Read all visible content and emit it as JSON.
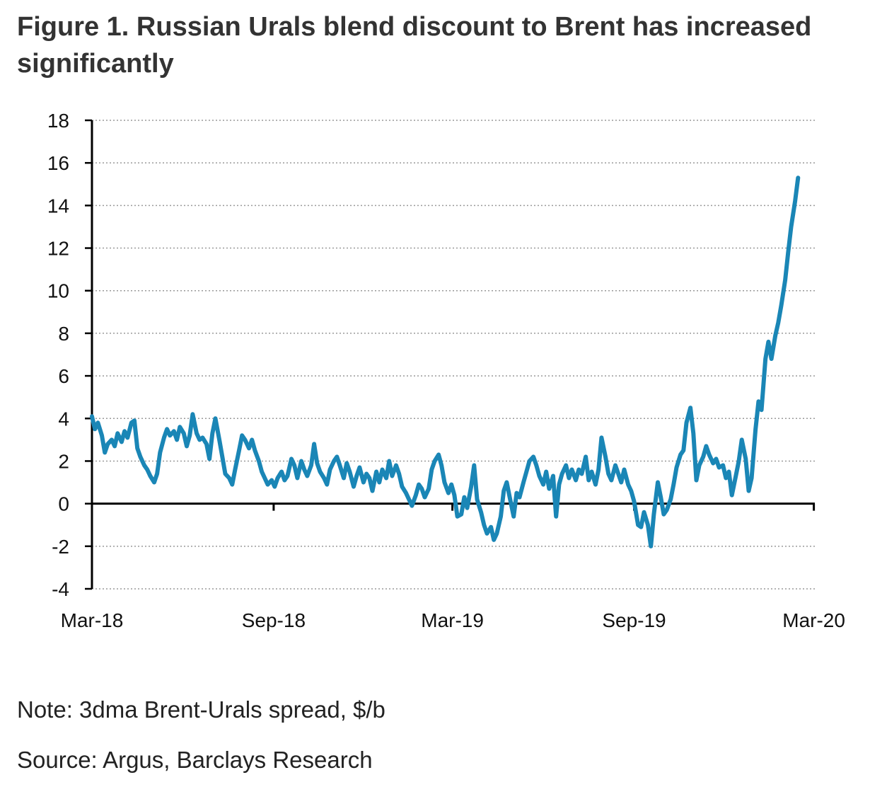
{
  "title": "Figure 1. Russian Urals blend discount to Brent has increased significantly",
  "note": "Note: 3dma Brent-Urals spread, $/b",
  "source": "Source: Argus, Barclays Research",
  "colors": {
    "series": "#1a86b6",
    "axis": "#000000",
    "grid": "#9a9a9a"
  },
  "chart_data": {
    "type": "line",
    "title": "Figure 1. Russian Urals blend discount to Brent has increased significantly",
    "xlabel": "",
    "ylabel": "",
    "x_range": [
      "2018-03-01",
      "2020-03-02"
    ],
    "ylim": [
      -4,
      18
    ],
    "yticks": [
      -4,
      -2,
      0,
      2,
      4,
      6,
      8,
      10,
      12,
      14,
      16,
      18
    ],
    "yticklabels": [
      "-4",
      "-2",
      "0",
      "2",
      "4",
      "6",
      "8",
      "10",
      "12",
      "14",
      "16",
      "18"
    ],
    "xticks": [
      "2018-03-01",
      "2018-09-01",
      "2019-03-01",
      "2019-09-01",
      "2020-03-01"
    ],
    "xticklabels": [
      "Mar-18",
      "Sep-18",
      "Mar-19",
      "Sep-19",
      "Mar-20"
    ],
    "grid": "horizontal dotted",
    "legend": "none",
    "series": [
      {
        "color": "#1a86b6",
        "points": [
          [
            "2018-03-01",
            4.1
          ],
          [
            "2018-03-04",
            3.5
          ],
          [
            "2018-03-07",
            3.8
          ],
          [
            "2018-03-11",
            3.2
          ],
          [
            "2018-03-14",
            2.4
          ],
          [
            "2018-03-17",
            2.8
          ],
          [
            "2018-03-21",
            3.0
          ],
          [
            "2018-03-24",
            2.7
          ],
          [
            "2018-03-27",
            3.3
          ],
          [
            "2018-03-31",
            2.9
          ],
          [
            "2018-04-03",
            3.4
          ],
          [
            "2018-04-06",
            3.1
          ],
          [
            "2018-04-10",
            3.8
          ],
          [
            "2018-04-13",
            3.9
          ],
          [
            "2018-04-16",
            2.6
          ],
          [
            "2018-04-19",
            2.2
          ],
          [
            "2018-04-23",
            1.8
          ],
          [
            "2018-04-26",
            1.6
          ],
          [
            "2018-04-29",
            1.3
          ],
          [
            "2018-05-03",
            1.0
          ],
          [
            "2018-05-06",
            1.4
          ],
          [
            "2018-05-09",
            2.4
          ],
          [
            "2018-05-13",
            3.1
          ],
          [
            "2018-05-16",
            3.5
          ],
          [
            "2018-05-19",
            3.2
          ],
          [
            "2018-05-23",
            3.4
          ],
          [
            "2018-05-26",
            3.0
          ],
          [
            "2018-05-29",
            3.6
          ],
          [
            "2018-06-02",
            3.3
          ],
          [
            "2018-06-05",
            2.7
          ],
          [
            "2018-06-08",
            3.2
          ],
          [
            "2018-06-11",
            4.2
          ],
          [
            "2018-06-15",
            3.3
          ],
          [
            "2018-06-18",
            3.0
          ],
          [
            "2018-06-21",
            3.1
          ],
          [
            "2018-06-25",
            2.8
          ],
          [
            "2018-06-28",
            2.1
          ],
          [
            "2018-07-01",
            3.3
          ],
          [
            "2018-07-04",
            4.0
          ],
          [
            "2018-07-08",
            3.0
          ],
          [
            "2018-07-11",
            2.2
          ],
          [
            "2018-07-14",
            1.4
          ],
          [
            "2018-07-18",
            1.2
          ],
          [
            "2018-07-21",
            0.9
          ],
          [
            "2018-07-24",
            1.6
          ],
          [
            "2018-07-28",
            2.5
          ],
          [
            "2018-07-31",
            3.2
          ],
          [
            "2018-08-03",
            3.0
          ],
          [
            "2018-08-07",
            2.6
          ],
          [
            "2018-08-10",
            3.0
          ],
          [
            "2018-08-13",
            2.5
          ],
          [
            "2018-08-17",
            2.0
          ],
          [
            "2018-08-20",
            1.5
          ],
          [
            "2018-08-23",
            1.2
          ],
          [
            "2018-08-26",
            0.9
          ],
          [
            "2018-08-30",
            1.1
          ],
          [
            "2018-09-02",
            0.8
          ],
          [
            "2018-09-05",
            1.2
          ],
          [
            "2018-09-09",
            1.5
          ],
          [
            "2018-09-12",
            1.1
          ],
          [
            "2018-09-15",
            1.3
          ],
          [
            "2018-09-19",
            2.1
          ],
          [
            "2018-09-22",
            1.8
          ],
          [
            "2018-09-25",
            1.2
          ],
          [
            "2018-09-29",
            2.0
          ],
          [
            "2018-10-02",
            1.6
          ],
          [
            "2018-10-05",
            1.3
          ],
          [
            "2018-10-09",
            1.8
          ],
          [
            "2018-10-12",
            2.8
          ],
          [
            "2018-10-15",
            1.9
          ],
          [
            "2018-10-18",
            1.5
          ],
          [
            "2018-10-22",
            1.2
          ],
          [
            "2018-10-25",
            0.9
          ],
          [
            "2018-10-28",
            1.6
          ],
          [
            "2018-11-01",
            2.0
          ],
          [
            "2018-11-04",
            2.2
          ],
          [
            "2018-11-07",
            1.8
          ],
          [
            "2018-11-11",
            1.2
          ],
          [
            "2018-11-14",
            1.9
          ],
          [
            "2018-11-17",
            1.5
          ],
          [
            "2018-11-21",
            0.8
          ],
          [
            "2018-11-24",
            1.3
          ],
          [
            "2018-11-27",
            1.7
          ],
          [
            "2018-12-01",
            1.0
          ],
          [
            "2018-12-04",
            1.4
          ],
          [
            "2018-12-07",
            1.2
          ],
          [
            "2018-12-10",
            0.6
          ],
          [
            "2018-12-14",
            1.5
          ],
          [
            "2018-12-17",
            1.0
          ],
          [
            "2018-12-20",
            1.6
          ],
          [
            "2018-12-24",
            1.2
          ],
          [
            "2018-12-27",
            2.0
          ],
          [
            "2018-12-30",
            1.3
          ],
          [
            "2019-01-03",
            1.8
          ],
          [
            "2019-01-06",
            1.4
          ],
          [
            "2019-01-09",
            0.8
          ],
          [
            "2019-01-13",
            0.5
          ],
          [
            "2019-01-16",
            0.2
          ],
          [
            "2019-01-19",
            -0.1
          ],
          [
            "2019-01-23",
            0.4
          ],
          [
            "2019-01-26",
            0.9
          ],
          [
            "2019-01-29",
            0.7
          ],
          [
            "2019-02-01",
            0.3
          ],
          [
            "2019-02-05",
            0.7
          ],
          [
            "2019-02-08",
            1.6
          ],
          [
            "2019-02-11",
            2.0
          ],
          [
            "2019-02-15",
            2.3
          ],
          [
            "2019-02-18",
            1.8
          ],
          [
            "2019-02-21",
            1.0
          ],
          [
            "2019-02-25",
            0.5
          ],
          [
            "2019-02-28",
            0.9
          ],
          [
            "2019-03-03",
            0.4
          ],
          [
            "2019-03-06",
            -0.6
          ],
          [
            "2019-03-10",
            -0.5
          ],
          [
            "2019-03-13",
            0.3
          ],
          [
            "2019-03-16",
            -0.2
          ],
          [
            "2019-03-20",
            0.8
          ],
          [
            "2019-03-23",
            1.8
          ],
          [
            "2019-03-26",
            0.2
          ],
          [
            "2019-03-30",
            -0.4
          ],
          [
            "2019-04-02",
            -1.0
          ],
          [
            "2019-04-05",
            -1.4
          ],
          [
            "2019-04-09",
            -1.1
          ],
          [
            "2019-04-12",
            -1.7
          ],
          [
            "2019-04-15",
            -1.4
          ],
          [
            "2019-04-19",
            -0.6
          ],
          [
            "2019-04-22",
            0.6
          ],
          [
            "2019-04-25",
            1.0
          ],
          [
            "2019-04-28",
            0.3
          ],
          [
            "2019-05-02",
            -0.6
          ],
          [
            "2019-05-05",
            0.5
          ],
          [
            "2019-05-08",
            0.3
          ],
          [
            "2019-05-12",
            1.0
          ],
          [
            "2019-05-15",
            1.5
          ],
          [
            "2019-05-18",
            2.0
          ],
          [
            "2019-05-22",
            2.2
          ],
          [
            "2019-05-25",
            1.8
          ],
          [
            "2019-05-28",
            1.3
          ],
          [
            "2019-06-01",
            0.9
          ],
          [
            "2019-06-04",
            1.5
          ],
          [
            "2019-06-07",
            0.7
          ],
          [
            "2019-06-11",
            1.3
          ],
          [
            "2019-06-14",
            -0.6
          ],
          [
            "2019-06-17",
            0.9
          ],
          [
            "2019-06-20",
            1.4
          ],
          [
            "2019-06-24",
            1.8
          ],
          [
            "2019-06-27",
            1.2
          ],
          [
            "2019-06-30",
            1.6
          ],
          [
            "2019-07-04",
            1.1
          ],
          [
            "2019-07-07",
            1.6
          ],
          [
            "2019-07-10",
            1.4
          ],
          [
            "2019-07-14",
            2.2
          ],
          [
            "2019-07-17",
            1.1
          ],
          [
            "2019-07-20",
            1.5
          ],
          [
            "2019-07-24",
            0.9
          ],
          [
            "2019-07-27",
            1.6
          ],
          [
            "2019-07-30",
            3.1
          ],
          [
            "2019-08-03",
            2.2
          ],
          [
            "2019-08-06",
            1.4
          ],
          [
            "2019-08-09",
            1.1
          ],
          [
            "2019-08-13",
            1.8
          ],
          [
            "2019-08-16",
            1.4
          ],
          [
            "2019-08-19",
            1.0
          ],
          [
            "2019-08-22",
            1.6
          ],
          [
            "2019-08-26",
            0.9
          ],
          [
            "2019-08-29",
            0.6
          ],
          [
            "2019-09-01",
            0.1
          ],
          [
            "2019-09-05",
            -1.0
          ],
          [
            "2019-09-08",
            -1.1
          ],
          [
            "2019-09-11",
            -0.4
          ],
          [
            "2019-09-15",
            -1.0
          ],
          [
            "2019-09-18",
            -2.0
          ],
          [
            "2019-09-21",
            -0.5
          ],
          [
            "2019-09-25",
            1.0
          ],
          [
            "2019-09-28",
            0.3
          ],
          [
            "2019-10-01",
            -0.5
          ],
          [
            "2019-10-04",
            -0.3
          ],
          [
            "2019-10-08",
            0.2
          ],
          [
            "2019-10-11",
            0.9
          ],
          [
            "2019-10-14",
            1.7
          ],
          [
            "2019-10-18",
            2.3
          ],
          [
            "2019-10-21",
            2.5
          ],
          [
            "2019-10-24",
            3.8
          ],
          [
            "2019-10-28",
            4.5
          ],
          [
            "2019-10-31",
            3.3
          ],
          [
            "2019-11-03",
            1.1
          ],
          [
            "2019-11-06",
            1.8
          ],
          [
            "2019-11-10",
            2.2
          ],
          [
            "2019-11-13",
            2.7
          ],
          [
            "2019-11-16",
            2.3
          ],
          [
            "2019-11-20",
            1.9
          ],
          [
            "2019-11-23",
            2.1
          ],
          [
            "2019-11-26",
            1.7
          ],
          [
            "2019-11-30",
            1.8
          ],
          [
            "2019-12-03",
            1.2
          ],
          [
            "2019-12-06",
            1.5
          ],
          [
            "2019-12-09",
            0.4
          ],
          [
            "2019-12-13",
            1.3
          ],
          [
            "2019-12-16",
            2.0
          ],
          [
            "2019-12-19",
            3.0
          ],
          [
            "2019-12-23",
            2.1
          ],
          [
            "2019-12-26",
            0.6
          ],
          [
            "2019-12-29",
            1.2
          ],
          [
            "2020-01-02",
            3.5
          ],
          [
            "2020-01-05",
            4.8
          ],
          [
            "2020-01-08",
            4.4
          ],
          [
            "2020-01-12",
            6.8
          ],
          [
            "2020-01-15",
            7.6
          ],
          [
            "2020-01-18",
            6.8
          ],
          [
            "2020-01-22",
            7.9
          ],
          [
            "2020-01-25",
            8.5
          ],
          [
            "2020-01-28",
            9.3
          ],
          [
            "2020-02-01",
            10.5
          ],
          [
            "2020-02-04",
            11.8
          ],
          [
            "2020-02-07",
            13.0
          ],
          [
            "2020-02-11",
            14.2
          ],
          [
            "2020-02-14",
            15.3
          ]
        ]
      }
    ]
  }
}
